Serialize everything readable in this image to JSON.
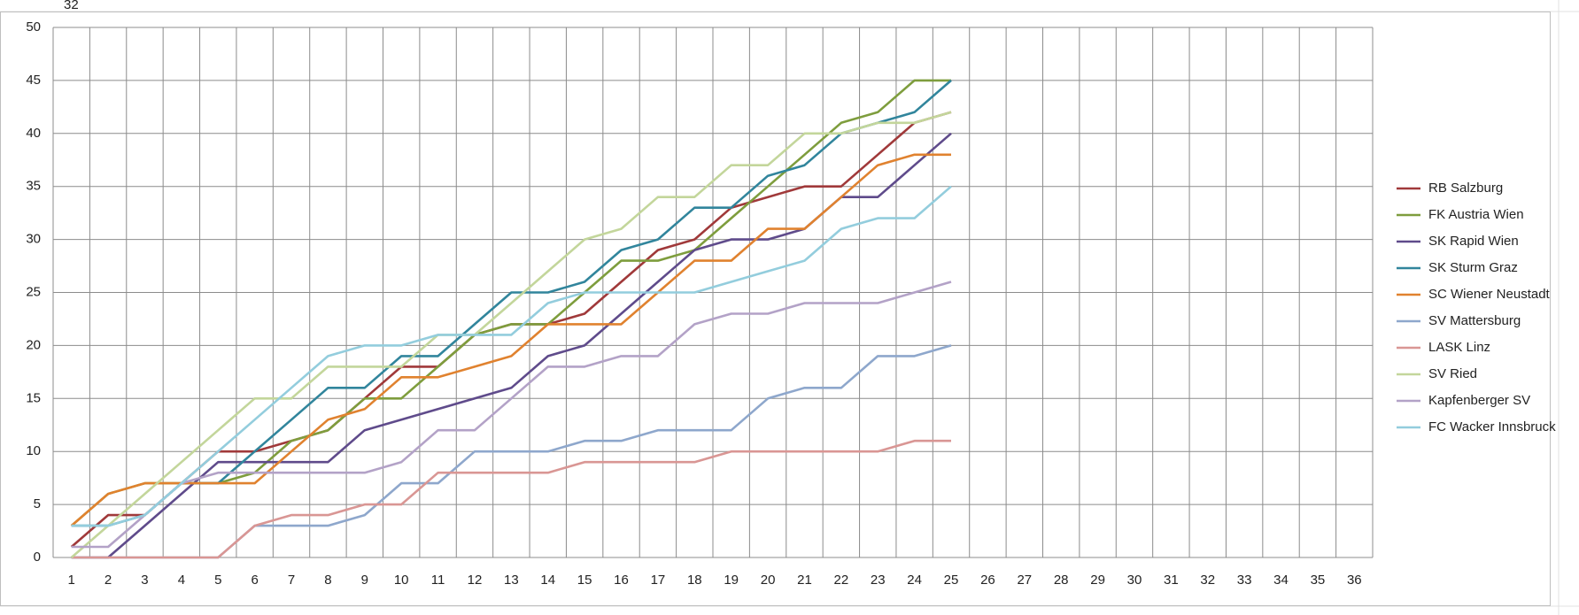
{
  "chart_data": {
    "type": "line",
    "annotation": "32",
    "categories": [
      1,
      2,
      3,
      4,
      5,
      6,
      7,
      8,
      9,
      10,
      11,
      12,
      13,
      14,
      15,
      16,
      17,
      18,
      19,
      20,
      21,
      22,
      23,
      24,
      25,
      26,
      27,
      28,
      29,
      30,
      31,
      32,
      33,
      34,
      35,
      36
    ],
    "ylim": [
      0,
      50
    ],
    "yticks": [
      0,
      5,
      10,
      15,
      20,
      25,
      30,
      35,
      40,
      45,
      50
    ],
    "grid": true,
    "legend": "right",
    "series": [
      {
        "name": "RB Salzburg",
        "color": "#a0393a",
        "values": [
          1,
          4,
          4,
          7,
          10,
          10,
          11,
          12,
          15,
          18,
          18,
          21,
          22,
          22,
          23,
          26,
          29,
          30,
          33,
          34,
          35,
          35,
          38,
          41,
          42,
          null,
          null,
          null,
          null,
          null,
          null,
          null,
          null,
          null,
          null,
          null
        ]
      },
      {
        "name": "FK Austria Wien",
        "color": "#7e9d3d",
        "values": [
          3,
          6,
          7,
          7,
          7,
          8,
          11,
          12,
          15,
          15,
          18,
          21,
          22,
          22,
          25,
          28,
          28,
          29,
          32,
          35,
          38,
          41,
          42,
          45,
          45,
          null,
          null,
          null,
          null,
          null,
          null,
          null,
          null,
          null,
          null,
          null
        ]
      },
      {
        "name": "SK Rapid Wien",
        "color": "#5f4b8b",
        "values": [
          0,
          0,
          3,
          6,
          9,
          9,
          9,
          9,
          12,
          13,
          14,
          15,
          16,
          19,
          20,
          23,
          26,
          29,
          30,
          30,
          31,
          34,
          34,
          37,
          40,
          null,
          null,
          null,
          null,
          null,
          null,
          null,
          null,
          null,
          null,
          null
        ]
      },
      {
        "name": "SK Sturm Graz",
        "color": "#31859c",
        "values": [
          3,
          3,
          4,
          7,
          7,
          10,
          13,
          16,
          16,
          19,
          19,
          22,
          25,
          25,
          26,
          29,
          30,
          33,
          33,
          36,
          37,
          40,
          41,
          42,
          45,
          null,
          null,
          null,
          null,
          null,
          null,
          null,
          null,
          null,
          null,
          null
        ]
      },
      {
        "name": "SC Wiener Neustadt",
        "color": "#e0822f",
        "values": [
          3,
          6,
          7,
          7,
          7,
          7,
          10,
          13,
          14,
          17,
          17,
          18,
          19,
          22,
          22,
          22,
          25,
          28,
          28,
          31,
          31,
          34,
          37,
          38,
          38,
          null,
          null,
          null,
          null,
          null,
          null,
          null,
          null,
          null,
          null,
          null
        ]
      },
      {
        "name": "SV Mattersburg",
        "color": "#8ea7cc",
        "values": [
          0,
          0,
          0,
          0,
          0,
          3,
          3,
          3,
          4,
          7,
          7,
          10,
          10,
          10,
          11,
          11,
          12,
          12,
          12,
          15,
          16,
          16,
          19,
          19,
          20,
          null,
          null,
          null,
          null,
          null,
          null,
          null,
          null,
          null,
          null,
          null
        ]
      },
      {
        "name": "LASK Linz",
        "color": "#d99694",
        "values": [
          0,
          0,
          0,
          0,
          0,
          3,
          4,
          4,
          5,
          5,
          8,
          8,
          8,
          8,
          9,
          9,
          9,
          9,
          10,
          10,
          10,
          10,
          10,
          11,
          11,
          null,
          null,
          null,
          null,
          null,
          null,
          null,
          null,
          null,
          null,
          null
        ]
      },
      {
        "name": "SV Ried",
        "color": "#c3d69b",
        "values": [
          0,
          3,
          6,
          9,
          12,
          15,
          15,
          18,
          18,
          18,
          21,
          21,
          24,
          27,
          30,
          31,
          34,
          34,
          37,
          37,
          40,
          40,
          41,
          41,
          42,
          null,
          null,
          null,
          null,
          null,
          null,
          null,
          null,
          null,
          null,
          null
        ]
      },
      {
        "name": "Kapfenberger SV",
        "color": "#b3a2c7",
        "values": [
          1,
          1,
          4,
          7,
          8,
          8,
          8,
          8,
          8,
          9,
          12,
          12,
          15,
          18,
          18,
          19,
          19,
          22,
          23,
          23,
          24,
          24,
          24,
          25,
          26,
          null,
          null,
          null,
          null,
          null,
          null,
          null,
          null,
          null,
          null,
          null
        ]
      },
      {
        "name": "FC Wacker Innsbruck",
        "color": "#93cddd",
        "values": [
          3,
          3,
          4,
          7,
          10,
          13,
          16,
          19,
          20,
          20,
          21,
          21,
          21,
          24,
          25,
          25,
          25,
          25,
          26,
          27,
          28,
          31,
          32,
          32,
          35,
          null,
          null,
          null,
          null,
          null,
          null,
          null,
          null,
          null,
          null,
          null
        ]
      }
    ]
  }
}
